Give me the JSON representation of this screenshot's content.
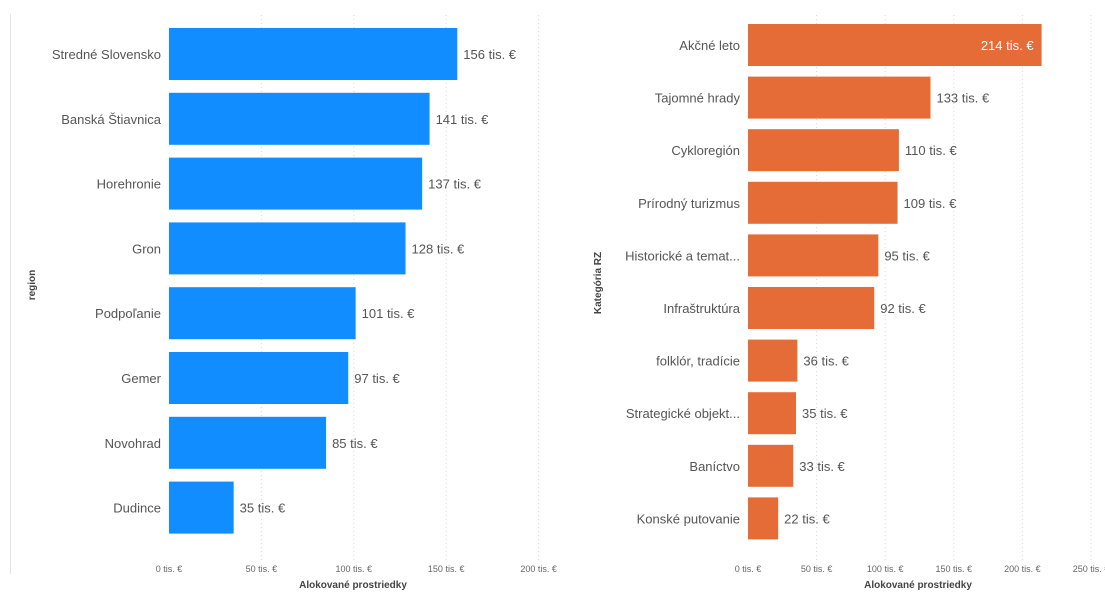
{
  "colors": {
    "left_bar": "#118dff",
    "right_bar": "#e66c37",
    "grid": "#d9d9d9",
    "inside_label": "#ffffff"
  },
  "chart_data": [
    {
      "type": "bar",
      "orientation": "horizontal",
      "categories": [
        "Stredné Slovensko",
        "Banská Štiavnica",
        "Horehronie",
        "Gron",
        "Podpoľanie",
        "Gemer",
        "Novohrad",
        "Dudince"
      ],
      "values": [
        156,
        141,
        137,
        128,
        101,
        97,
        85,
        35
      ],
      "data_labels": [
        "156 tis. €",
        "141 tis. €",
        "137 tis. €",
        "128 tis. €",
        "101 tis. €",
        "97 tis. €",
        "85 tis. €",
        "35 tis. €"
      ],
      "xlabel": "Alokované prostriedky",
      "ylabel": "region",
      "xlim": [
        0,
        200
      ],
      "xticks": [
        0,
        50,
        100,
        150,
        200
      ],
      "xtick_labels": [
        "0 tis. €",
        "50 tis. €",
        "100 tis. €",
        "150 tis. €",
        "200 tis. €"
      ],
      "grid": "vertical dotted",
      "unit": "tis. €"
    },
    {
      "type": "bar",
      "orientation": "horizontal",
      "categories": [
        "Akčné leto",
        "Tajomné hrady",
        "Cykloregión",
        "Prírodný turizmus",
        "Historické a temat...",
        "Infraštruktúra",
        "folklór, tradície",
        "Strategické objekt...",
        "Baníctvo",
        "Konské putovanie"
      ],
      "values": [
        214,
        133,
        110,
        109,
        95,
        92,
        36,
        35,
        33,
        22
      ],
      "data_labels": [
        "214 tis. €",
        "133 tis. €",
        "110 tis. €",
        "109 tis. €",
        "95 tis. €",
        "92 tis. €",
        "36 tis. €",
        "35 tis. €",
        "33 tis. €",
        "22 tis. €"
      ],
      "xlabel": "Alokované prostriedky",
      "ylabel": "Kategória RZ",
      "xlim": [
        0,
        250
      ],
      "xticks": [
        0,
        50,
        100,
        150,
        200,
        250
      ],
      "xtick_labels": [
        "0 tis. €",
        "50 tis. €",
        "100 tis. €",
        "150 tis. €",
        "200 tis. €",
        "250 tis. €"
      ],
      "grid": "vertical dotted",
      "unit": "tis. €"
    }
  ]
}
